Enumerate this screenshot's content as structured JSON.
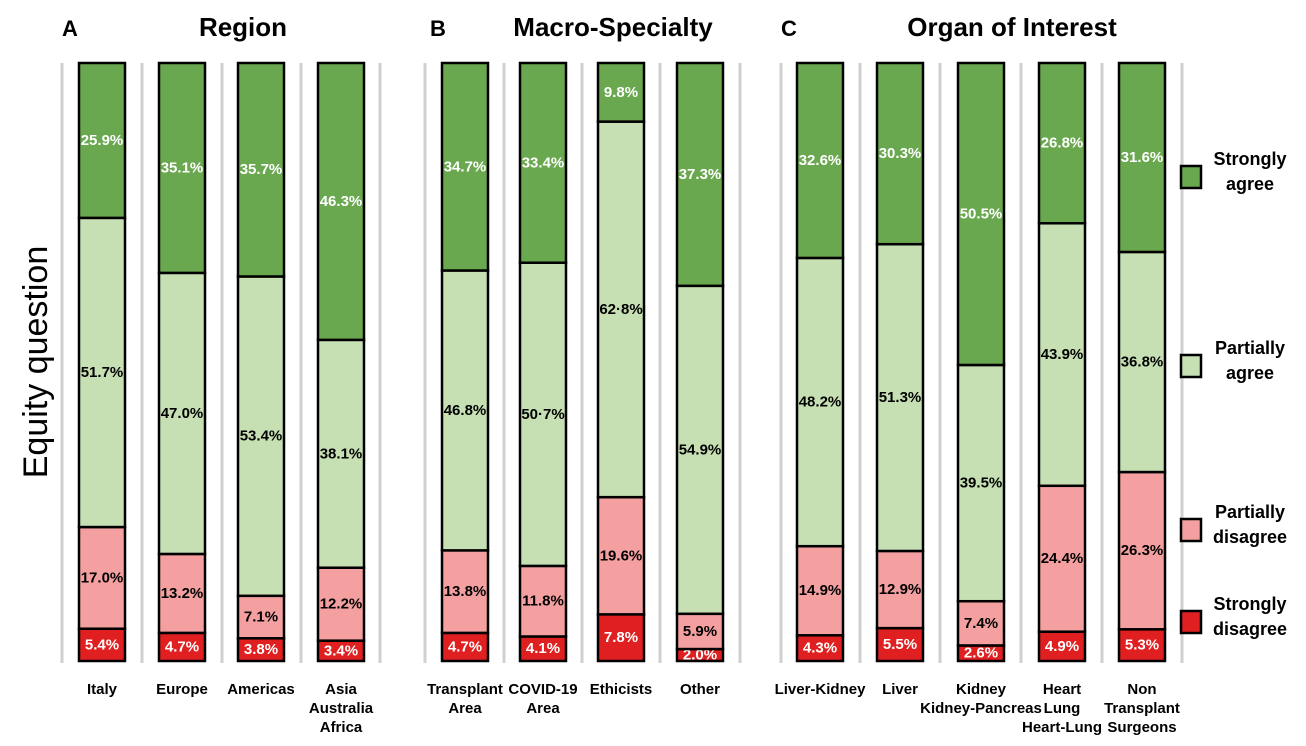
{
  "chart_data": {
    "type": "bar",
    "stacked": true,
    "percent": true,
    "ylabel": "Equity question",
    "legend": {
      "placement": "right",
      "entries": [
        {
          "key": "strongly_agree",
          "lines": [
            "Strongly",
            "agree"
          ],
          "color": "#6aa84f"
        },
        {
          "key": "partially_agree",
          "lines": [
            "Partially",
            "agree"
          ],
          "color": "#c6e0b4"
        },
        {
          "key": "partially_disagree",
          "lines": [
            "Partially",
            "disagree"
          ],
          "color": "#f4a0a0"
        },
        {
          "key": "strongly_disagree",
          "lines": [
            "Strongly",
            "disagree"
          ],
          "color": "#e02020"
        }
      ]
    },
    "colors": {
      "strongly_agree": "#6aa84f",
      "partially_agree": "#c6e0b4",
      "partially_disagree": "#f4a0a0",
      "strongly_disagree": "#e02020"
    },
    "panels": [
      {
        "letter": "A",
        "title": "Region",
        "bars": [
          {
            "label_lines": [
              "Italy"
            ],
            "strongly_disagree": 5.4,
            "partially_disagree": 17.0,
            "partially_agree": 51.7,
            "strongly_agree": 25.9,
            "labels": {
              "strongly_disagree": "5.4%",
              "partially_disagree": "17.0%",
              "partially_agree": "51.7%",
              "strongly_agree": "25.9%"
            }
          },
          {
            "label_lines": [
              "Europe"
            ],
            "strongly_disagree": 4.7,
            "partially_disagree": 13.2,
            "partially_agree": 47.0,
            "strongly_agree": 35.1,
            "labels": {
              "strongly_disagree": "4.7%",
              "partially_disagree": "13.2%",
              "partially_agree": "47.0%",
              "strongly_agree": "35.1%"
            }
          },
          {
            "label_lines": [
              "Americas"
            ],
            "strongly_disagree": 3.8,
            "partially_disagree": 7.1,
            "partially_agree": 53.4,
            "strongly_agree": 35.7,
            "labels": {
              "strongly_disagree": "3.8%",
              "partially_disagree": "7.1%",
              "partially_agree": "53.4%",
              "strongly_agree": "35.7%"
            }
          },
          {
            "label_lines": [
              "Asia",
              "Australia",
              "Africa"
            ],
            "strongly_disagree": 3.4,
            "partially_disagree": 12.2,
            "partially_agree": 38.1,
            "strongly_agree": 46.3,
            "labels": {
              "strongly_disagree": "3.4%",
              "partially_disagree": "12.2%",
              "partially_agree": "38.1%",
              "strongly_agree": "46.3%"
            }
          }
        ]
      },
      {
        "letter": "B",
        "title": "Macro-Specialty",
        "bars": [
          {
            "label_lines": [
              "Transplant",
              "Area"
            ],
            "strongly_disagree": 4.7,
            "partially_disagree": 13.8,
            "partially_agree": 46.8,
            "strongly_agree": 34.7,
            "labels": {
              "strongly_disagree": "4.7%",
              "partially_disagree": "13.8%",
              "partially_agree": "46.8%",
              "strongly_agree": "34.7%"
            }
          },
          {
            "label_lines": [
              "COVID-19",
              "Area"
            ],
            "strongly_disagree": 4.1,
            "partially_disagree": 11.8,
            "partially_agree": 50.7,
            "strongly_agree": 33.4,
            "labels": {
              "strongly_disagree": "4.1%",
              "partially_disagree": "11.8%",
              "partially_agree": "50·7%",
              "strongly_agree": "33.4%"
            }
          },
          {
            "label_lines": [
              "Ethicists"
            ],
            "strongly_disagree": 7.8,
            "partially_disagree": 19.6,
            "partially_agree": 62.8,
            "strongly_agree": 9.8,
            "labels": {
              "strongly_disagree": "7.8%",
              "partially_disagree": "19.6%",
              "partially_agree": "62·8%",
              "strongly_agree": "9.8%"
            }
          },
          {
            "label_lines": [
              "Other"
            ],
            "strongly_disagree": 2.0,
            "partially_disagree": 5.9,
            "partially_agree": 54.9,
            "strongly_agree": 37.3,
            "labels": {
              "strongly_disagree": "2.0%",
              "partially_disagree": "5.9%",
              "partially_agree": "54.9%",
              "strongly_agree": "37.3%"
            }
          }
        ]
      },
      {
        "letter": "C",
        "title": "Organ of Interest",
        "bars": [
          {
            "label_lines": [
              "Liver-Kidney"
            ],
            "strongly_disagree": 4.3,
            "partially_disagree": 14.9,
            "partially_agree": 48.2,
            "strongly_agree": 32.6,
            "labels": {
              "strongly_disagree": "4.3%",
              "partially_disagree": "14.9%",
              "partially_agree": "48.2%",
              "strongly_agree": "32.6%"
            }
          },
          {
            "label_lines": [
              "Liver"
            ],
            "strongly_disagree": 5.5,
            "partially_disagree": 12.9,
            "partially_agree": 51.3,
            "strongly_agree": 30.3,
            "labels": {
              "strongly_disagree": "5.5%",
              "partially_disagree": "12.9%",
              "partially_agree": "51.3%",
              "strongly_agree": "30.3%"
            }
          },
          {
            "label_lines": [
              "Kidney",
              "Kidney-Pancreas"
            ],
            "strongly_disagree": 2.6,
            "partially_disagree": 7.4,
            "partially_agree": 39.5,
            "strongly_agree": 50.5,
            "labels": {
              "strongly_disagree": "2.6%",
              "partially_disagree": "7.4%",
              "partially_agree": "39.5%",
              "strongly_agree": "50.5%"
            }
          },
          {
            "label_lines": [
              "Heart",
              "Lung",
              "Heart-Lung"
            ],
            "strongly_disagree": 4.9,
            "partially_disagree": 24.4,
            "partially_agree": 43.9,
            "strongly_agree": 26.8,
            "labels": {
              "strongly_disagree": "4.9%",
              "partially_disagree": "24.4%",
              "partially_agree": "43.9%",
              "strongly_agree": "26.8%"
            }
          },
          {
            "label_lines": [
              "Non",
              "Transplant",
              "Surgeons"
            ],
            "strongly_disagree": 5.3,
            "partially_disagree": 26.3,
            "partially_agree": 36.8,
            "strongly_agree": 31.6,
            "labels": {
              "strongly_disagree": "5.3%",
              "partially_disagree": "26.3%",
              "partially_agree": "36.8%",
              "strongly_agree": "31.6%"
            }
          }
        ]
      }
    ]
  }
}
